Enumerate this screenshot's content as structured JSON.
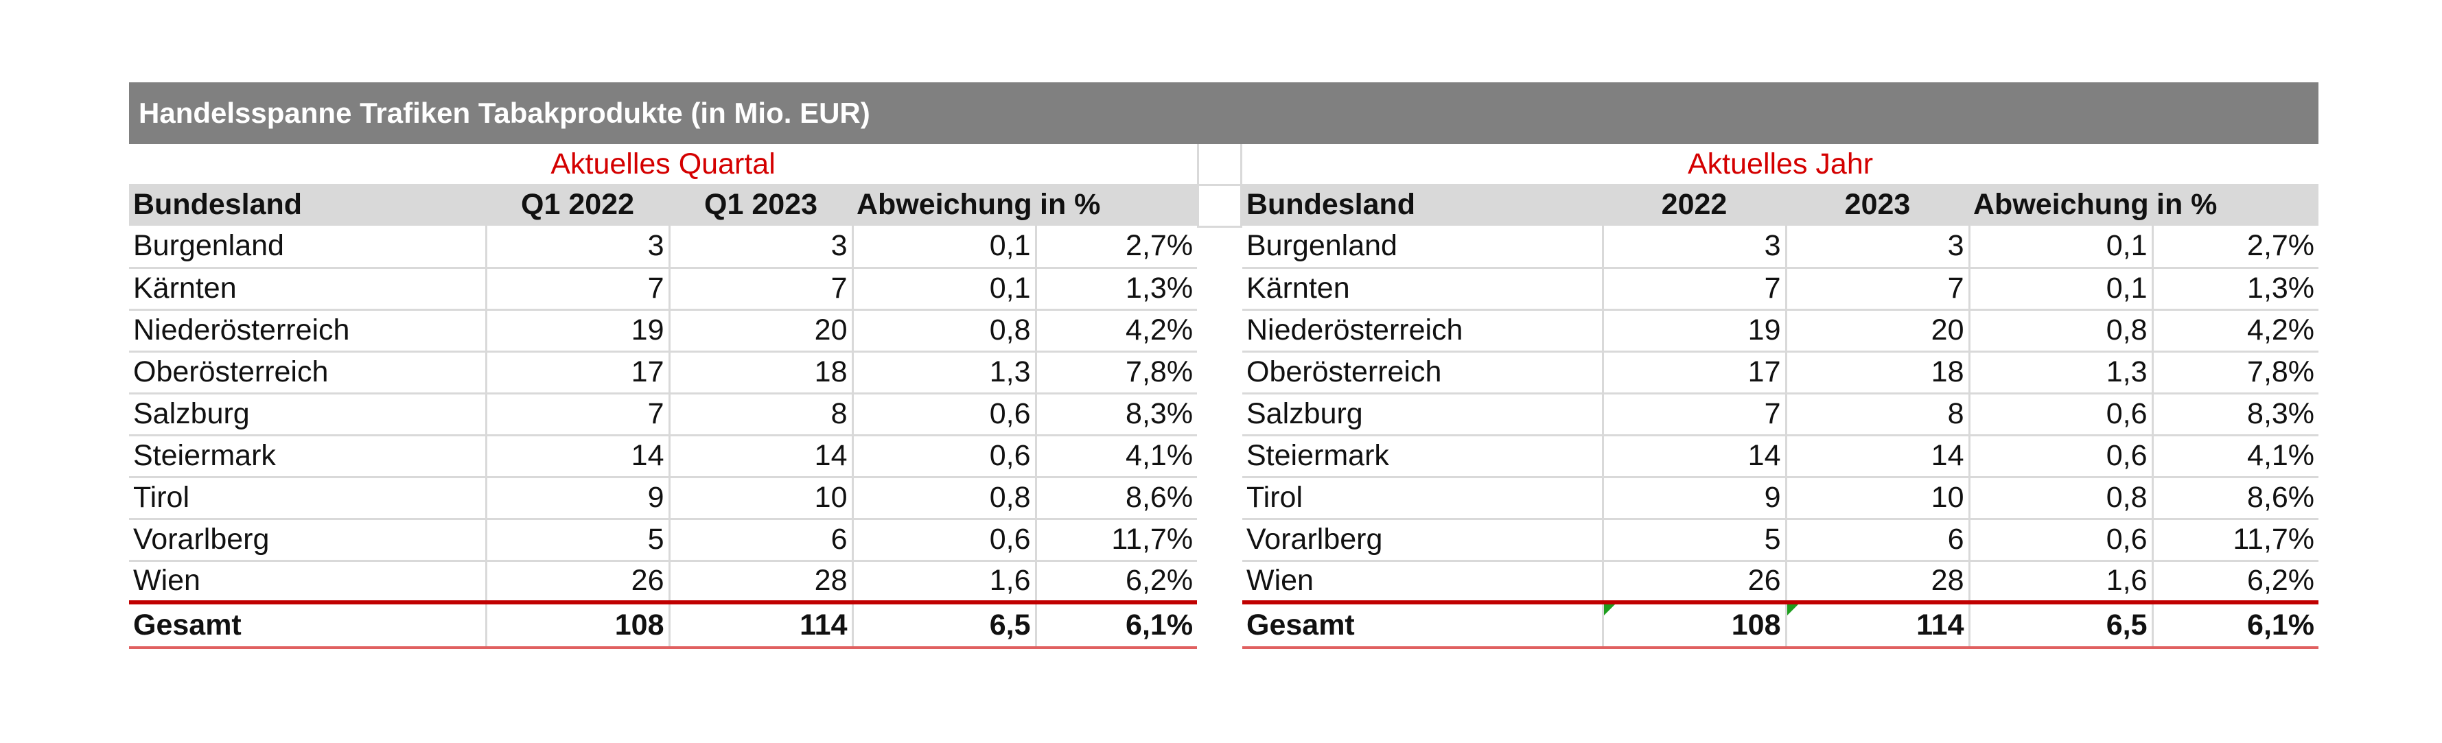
{
  "title": "Handelsspanne Trafiken Tabakprodukte (in Mio. EUR)",
  "quarter_table": {
    "period_label": "Aktuelles Quartal",
    "headers": [
      "Bundesland",
      "Q1 2022",
      "Q1 2023",
      "Abweichung",
      "in %"
    ],
    "rows": [
      [
        "Burgenland",
        "3",
        "3",
        "0,1",
        "2,7%"
      ],
      [
        "Kärnten",
        "7",
        "7",
        "0,1",
        "1,3%"
      ],
      [
        "Niederösterreich",
        "19",
        "20",
        "0,8",
        "4,2%"
      ],
      [
        "Oberösterreich",
        "17",
        "18",
        "1,3",
        "7,8%"
      ],
      [
        "Salzburg",
        "7",
        "8",
        "0,6",
        "8,3%"
      ],
      [
        "Steiermark",
        "14",
        "14",
        "0,6",
        "4,1%"
      ],
      [
        "Tirol",
        "9",
        "10",
        "0,8",
        "8,6%"
      ],
      [
        "Vorarlberg",
        "5",
        "6",
        "0,6",
        "11,7%"
      ],
      [
        "Wien",
        "26",
        "28",
        "1,6",
        "6,2%"
      ]
    ],
    "total": [
      "Gesamt",
      "108",
      "114",
      "6,5",
      "6,1%"
    ]
  },
  "year_table": {
    "period_label": "Aktuelles Jahr",
    "headers": [
      "Bundesland",
      "2022",
      "2023",
      "Abweichung",
      "in %"
    ],
    "rows": [
      [
        "Burgenland",
        "3",
        "3",
        "0,1",
        "2,7%"
      ],
      [
        "Kärnten",
        "7",
        "7",
        "0,1",
        "1,3%"
      ],
      [
        "Niederösterreich",
        "19",
        "20",
        "0,8",
        "4,2%"
      ],
      [
        "Oberösterreich",
        "17",
        "18",
        "1,3",
        "7,8%"
      ],
      [
        "Salzburg",
        "7",
        "8",
        "0,6",
        "8,3%"
      ],
      [
        "Steiermark",
        "14",
        "14",
        "0,6",
        "4,1%"
      ],
      [
        "Tirol",
        "9",
        "10",
        "0,8",
        "8,6%"
      ],
      [
        "Vorarlberg",
        "5",
        "6",
        "0,6",
        "11,7%"
      ],
      [
        "Wien",
        "26",
        "28",
        "1,6",
        "6,2%"
      ]
    ],
    "total": [
      "Gesamt",
      "108",
      "114",
      "6,5",
      "6,1%"
    ]
  },
  "colors": {
    "title_bar": "#808080",
    "header_fill": "#d9d9d9",
    "period_text": "#d40000",
    "total_rule": "#c00000",
    "comment_flag": "#1e9e1e"
  }
}
